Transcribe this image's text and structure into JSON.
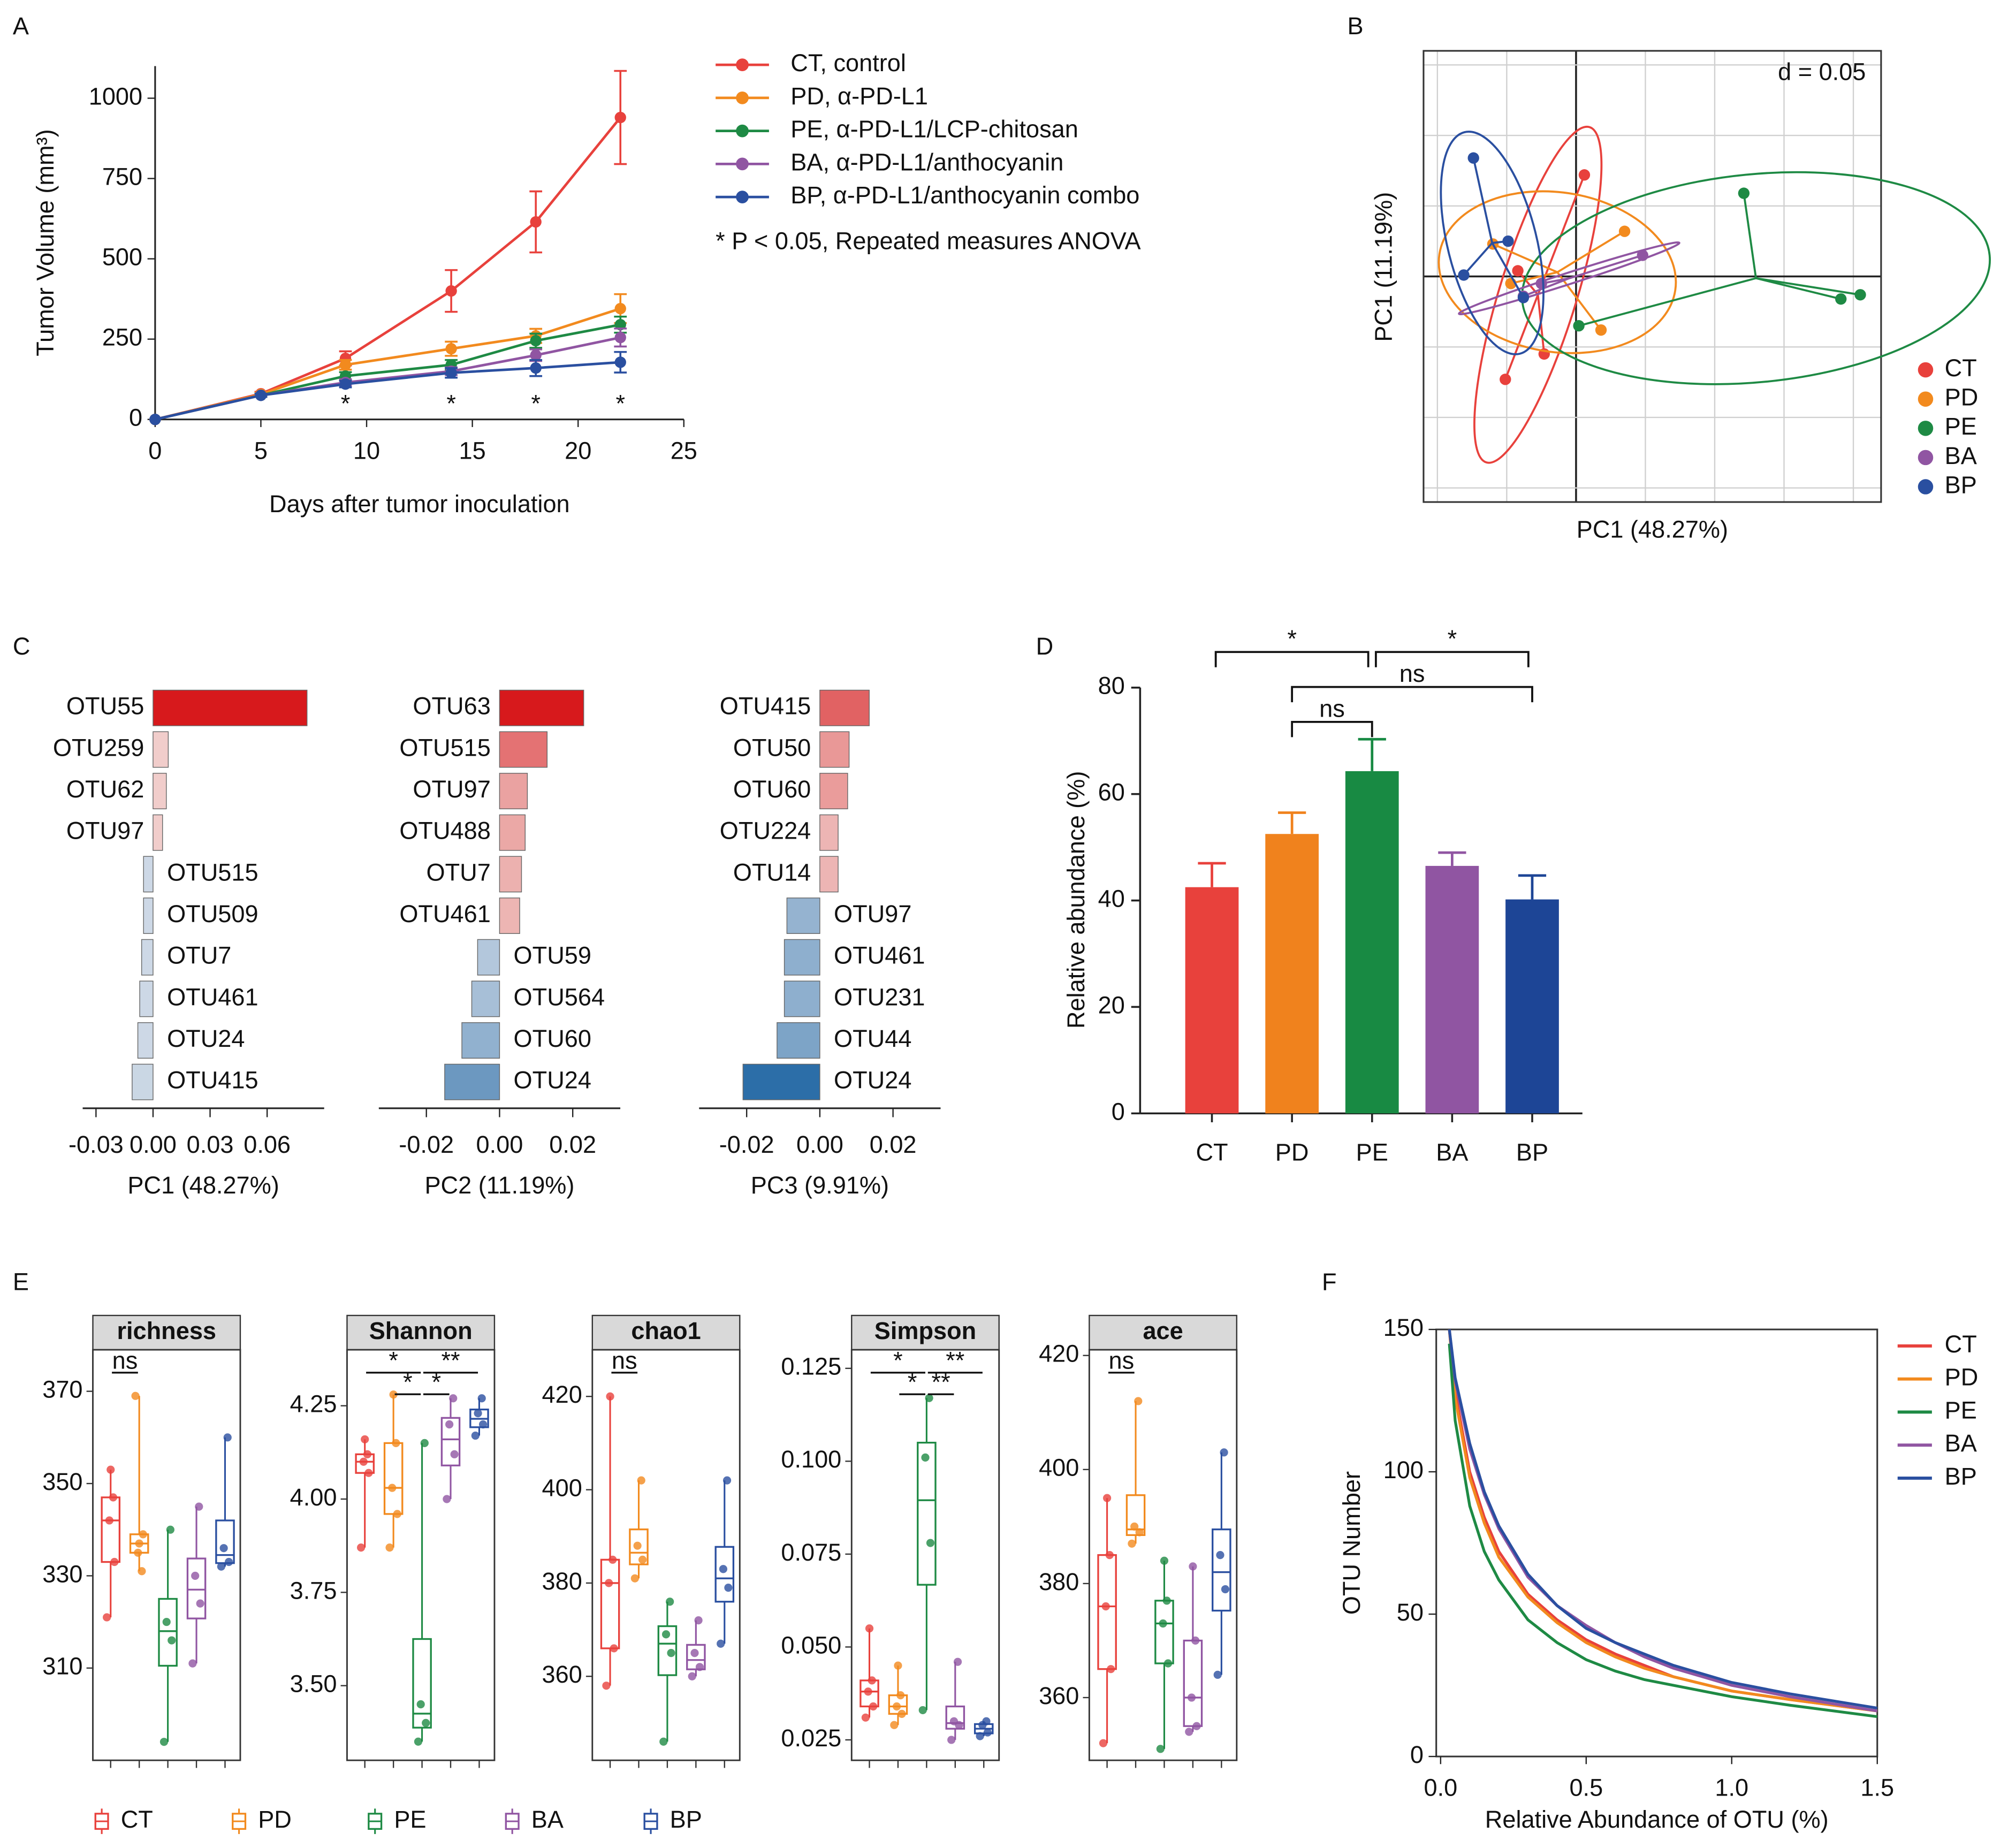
{
  "chart_data": [
    {
      "label": "A",
      "type": "line",
      "markers": true,
      "x": [
        0,
        5,
        9,
        14,
        18,
        22
      ],
      "xlim": [
        0,
        25
      ],
      "xticks": [
        0,
        5,
        10,
        15,
        20,
        25
      ],
      "ylim": [
        0,
        1100
      ],
      "yticks": [
        0,
        250,
        500,
        750,
        1000
      ],
      "xlabel": "Days after tumor inoculation",
      "ylabel": "Tumor Volume (mm³)",
      "series": [
        {
          "name": "CT, control",
          "color": "#e8413c",
          "values": [
            0,
            80,
            190,
            400,
            615,
            940
          ],
          "errors": [
            0,
            6,
            22,
            65,
            95,
            145
          ]
        },
        {
          "name": "PD, α-PD-L1",
          "color": "#f28a1e",
          "values": [
            0,
            78,
            170,
            220,
            260,
            345
          ],
          "errors": [
            0,
            5,
            15,
            22,
            22,
            45
          ]
        },
        {
          "name": "PE, α-PD-L1/LCP-chitosan",
          "color": "#1e8a44",
          "values": [
            0,
            75,
            135,
            170,
            245,
            295
          ],
          "errors": [
            0,
            5,
            12,
            15,
            22,
            25
          ]
        },
        {
          "name": "BA, α-PD-L1/anthocyanin",
          "color": "#9055a2",
          "values": [
            0,
            75,
            115,
            150,
            200,
            255
          ],
          "errors": [
            0,
            5,
            10,
            12,
            18,
            28
          ]
        },
        {
          "name": "BP, α-PD-L1/anthocyanin combo",
          "color": "#2a4fa0",
          "values": [
            0,
            75,
            110,
            145,
            160,
            178
          ],
          "errors": [
            0,
            5,
            10,
            15,
            25,
            32
          ]
        }
      ],
      "annotation": "* P < 0.05, Repeated measures ANOVA",
      "significance": {
        "x": [
          9,
          14,
          18,
          22
        ],
        "labels": [
          "*",
          "*",
          "*",
          "*"
        ]
      }
    },
    {
      "label": "B",
      "type": "scatter",
      "xlabel": "PC1 (48.27%)",
      "ylabel": "PC1 (11.19%)",
      "annotation": "d = 0.05",
      "xlim": [
        -0.11,
        0.22
      ],
      "ylim": [
        -0.16,
        0.16
      ],
      "grid_x": [
        -0.1,
        -0.05,
        0,
        0.05,
        0.1,
        0.15,
        0.2
      ],
      "grid_y": [
        -0.15,
        -0.1,
        -0.05,
        0,
        0.05,
        0.1,
        0.15
      ],
      "series": [
        {
          "name": "CT",
          "color": "#e8413c",
          "x": [
            0.006,
            -0.051,
            -0.023,
            -0.042
          ],
          "y": [
            0.072,
            -0.073,
            -0.055,
            0.004
          ]
        },
        {
          "name": "PD",
          "color": "#f28a1e",
          "x": [
            0.035,
            0.018,
            -0.06,
            -0.047
          ],
          "y": [
            0.032,
            -0.038,
            0.023,
            -0.005
          ]
        },
        {
          "name": "PE",
          "color": "#1e8a44",
          "x": [
            0.121,
            0.205,
            0.191,
            0.002
          ],
          "y": [
            0.059,
            -0.013,
            -0.016,
            -0.035
          ]
        },
        {
          "name": "BA",
          "color": "#9055a2",
          "x": [
            0.048,
            -0.038,
            -0.025
          ],
          "y": [
            0.015,
            -0.014,
            -0.005
          ]
        },
        {
          "name": "BP",
          "color": "#2a4fa0",
          "x": [
            -0.074,
            -0.081,
            -0.049,
            -0.038
          ],
          "y": [
            0.084,
            0.001,
            0.025,
            -0.015
          ]
        }
      ]
    },
    {
      "label": "C",
      "type": "hbar",
      "panels": [
        {
          "xlabel": "PC1 (48.27%)",
          "xlim": [
            -0.037,
            0.09
          ],
          "xticks": [
            -0.03,
            {
              "value": 0,
              "label": "0.00"
            },
            0.03,
            0.06
          ],
          "categories": [
            "OTU55",
            "OTU259",
            "OTU62",
            "OTU97",
            "OTU515",
            "OTU509",
            "OTU7",
            "OTU461",
            "OTU24",
            "OTU415"
          ],
          "values": [
            0.081,
            0.008,
            0.007,
            0.005,
            -0.005,
            -0.005,
            -0.006,
            -0.007,
            -0.008,
            -0.011
          ]
        },
        {
          "xlabel": "PC2 (11.19%)",
          "xlim": [
            -0.033,
            0.033
          ],
          "xticks": [
            -0.02,
            {
              "value": 0,
              "label": "0.00"
            },
            0.02
          ],
          "categories": [
            "OTU63",
            "OTU515",
            "OTU97",
            "OTU488",
            "OTU7",
            "OTU461",
            "OTU59",
            "OTU564",
            "OTU60",
            "OTU24"
          ],
          "values": [
            0.023,
            0.013,
            0.0076,
            0.007,
            0.006,
            0.0055,
            -0.006,
            -0.0076,
            -0.0103,
            -0.015
          ]
        },
        {
          "xlabel": "PC3 (9.91%)",
          "xlim": [
            -0.033,
            0.033
          ],
          "xticks": [
            -0.02,
            {
              "value": 0,
              "label": "0.00"
            },
            0.02
          ],
          "categories": [
            "OTU415",
            "OTU50",
            "OTU60",
            "OTU224",
            "OTU14",
            "OTU97",
            "OTU461",
            "OTU231",
            "OTU44",
            "OTU24"
          ],
          "values": [
            0.0135,
            0.008,
            0.0076,
            0.005,
            0.005,
            -0.009,
            -0.0097,
            -0.0097,
            -0.0117,
            -0.021
          ]
        }
      ]
    },
    {
      "label": "D",
      "type": "bar",
      "categories": [
        "CT",
        "PD",
        "PE",
        "BA",
        "BP"
      ],
      "values": [
        42.5,
        52.5,
        64.3,
        46.5,
        40.2
      ],
      "errors": [
        4.5,
        4,
        6,
        2.5,
        4.5
      ],
      "colors": [
        "#e8413c",
        "#f0821d",
        "#188a43",
        "#9055a2",
        "#1d4596"
      ],
      "ylim": [
        0,
        80
      ],
      "yticks": [
        0,
        20,
        40,
        60,
        80
      ],
      "ylabel": "Relative abundance (%)",
      "comparisons": [
        {
          "from": "CT",
          "to": "PE",
          "label": "*"
        },
        {
          "from": "PE",
          "to": "BP",
          "label": "*"
        },
        {
          "from": "PD",
          "to": "BP",
          "label": "ns"
        },
        {
          "from": "PD",
          "to": "PE",
          "label": "ns"
        }
      ]
    },
    {
      "label": "E",
      "type": "box",
      "categories": [
        "CT",
        "PD",
        "PE",
        "BA",
        "BP"
      ],
      "colors": [
        "#e8413c",
        "#f28a1e",
        "#1e8a44",
        "#9055a2",
        "#2a4fa0"
      ],
      "panels": [
        {
          "title": "richness",
          "ylim": [
            290,
            379
          ],
          "yticks": [
            310,
            330,
            350,
            370
          ],
          "groups": [
            [
              321,
              333,
              342,
              347,
              353
            ],
            [
              369,
              339,
              335,
              331,
              337
            ],
            [
              294,
              316,
              320,
              340
            ],
            [
              311,
              324,
              330,
              345
            ],
            [
              332,
              333,
              336,
              360
            ]
          ],
          "comparisons": [
            {
              "from": "CT",
              "to": "PD",
              "label": "ns"
            }
          ]
        },
        {
          "title": "Shannon",
          "ylim": [
            3.3,
            4.4
          ],
          "yticks": [
            {
              "value": 3.5,
              "label": "3.50"
            },
            3.75,
            {
              "value": 4,
              "label": "4.00"
            },
            4.25
          ],
          "groups": [
            [
              3.87,
              4.07,
              4.1,
              4.12,
              4.16
            ],
            [
              3.87,
              3.96,
              4.03,
              4.15,
              4.28
            ],
            [
              3.35,
              3.4,
              3.45,
              4.15
            ],
            [
              4,
              4.12,
              4.2,
              4.27
            ],
            [
              4.17,
              4.2,
              4.23,
              4.27
            ]
          ],
          "comparisons": [
            {
              "from": "CT",
              "to": "PE",
              "label": "*"
            },
            {
              "from": "PE",
              "to": "BP",
              "label": "**"
            },
            {
              "from": "PD",
              "to": "PE",
              "label": "*"
            },
            {
              "from": "PE",
              "to": "BA",
              "label": "*"
            }
          ]
        },
        {
          "title": "chao1",
          "ylim": [
            342,
            430
          ],
          "yticks": [
            360,
            380,
            400,
            420
          ],
          "groups": [
            [
              358,
              366,
              380,
              385,
              420
            ],
            [
              381,
              385,
              388,
              402
            ],
            [
              346,
              365,
              369,
              376
            ],
            [
              360,
              362,
              365,
              372
            ],
            [
              367,
              379,
              383,
              402
            ]
          ],
          "comparisons": [
            {
              "from": "CT",
              "to": "PD",
              "label": "ns"
            }
          ]
        },
        {
          "title": "Simpson",
          "ylim": [
            0.0195,
            0.13
          ],
          "yticks": [
            0.025,
            {
              "value": 0.05,
              "label": "0.050"
            },
            0.075,
            {
              "value": 0.1,
              "label": "0.100"
            },
            0.125
          ],
          "groups": [
            [
              0.031,
              0.034,
              0.038,
              0.041,
              0.055
            ],
            [
              0.029,
              0.032,
              0.034,
              0.037,
              0.045
            ],
            [
              0.033,
              0.078,
              0.101,
              0.117
            ],
            [
              0.025,
              0.029,
              0.03,
              0.046
            ],
            [
              0.026,
              0.027,
              0.029,
              0.03
            ]
          ],
          "comparisons": [
            {
              "from": "CT",
              "to": "PE",
              "label": "*"
            },
            {
              "from": "PE",
              "to": "BP",
              "label": "**"
            },
            {
              "from": "PD",
              "to": "PE",
              "label": "*"
            },
            {
              "from": "PE",
              "to": "BA",
              "label": "**"
            }
          ]
        },
        {
          "title": "ace",
          "ylim": [
            349,
            421
          ],
          "yticks": [
            360,
            380,
            400,
            420
          ],
          "groups": [
            [
              352,
              365,
              376,
              385,
              395
            ],
            [
              387,
              389,
              390,
              412
            ],
            [
              351,
              366,
              373,
              377,
              384
            ],
            [
              354,
              355,
              360,
              370,
              383
            ],
            [
              364,
              379,
              385,
              403
            ]
          ],
          "comparisons": [
            {
              "from": "CT",
              "to": "PD",
              "label": "ns"
            }
          ]
        }
      ]
    },
    {
      "label": "F",
      "type": "line",
      "markers": false,
      "frame": true,
      "legend": "right",
      "x": [
        0.03,
        0.05,
        0.1,
        0.15,
        0.2,
        0.3,
        0.4,
        0.5,
        0.6,
        0.7,
        0.8,
        1,
        1.2,
        1.5
      ],
      "xlim": [
        -0.015,
        1.5
      ],
      "xticks": [
        {
          "value": 0,
          "label": "0.0"
        },
        0.5,
        {
          "value": 1,
          "label": "1.0"
        },
        1.5
      ],
      "ylim": [
        0,
        150
      ],
      "yticks": [
        0,
        50,
        100,
        150
      ],
      "xlabel": "Relative Abundance of OTU (%)",
      "ylabel": "OTU Number",
      "series": [
        {
          "name": "CT",
          "color": "#e8413c",
          "values": [
            150,
            128,
            100,
            84,
            72,
            57,
            48,
            41,
            36,
            32,
            28,
            23,
            20,
            16
          ]
        },
        {
          "name": "PD",
          "color": "#f28a1e",
          "values": [
            150,
            126,
            98,
            82,
            70,
            56,
            47,
            40,
            35,
            31,
            28,
            23,
            20,
            16
          ]
        },
        {
          "name": "PE",
          "color": "#1e8a44",
          "values": [
            145,
            118,
            88,
            72,
            62,
            48,
            40,
            34,
            30,
            27,
            25,
            21,
            18,
            14
          ]
        },
        {
          "name": "BA",
          "color": "#9055a2",
          "values": [
            150,
            132,
            108,
            92,
            80,
            63,
            53,
            46,
            40,
            35,
            31,
            25,
            21,
            16
          ]
        },
        {
          "name": "BP",
          "color": "#2a4fa0",
          "values": [
            150,
            133,
            110,
            93,
            81,
            64,
            53,
            45,
            40,
            36,
            32,
            26,
            22,
            17
          ]
        }
      ]
    }
  ]
}
